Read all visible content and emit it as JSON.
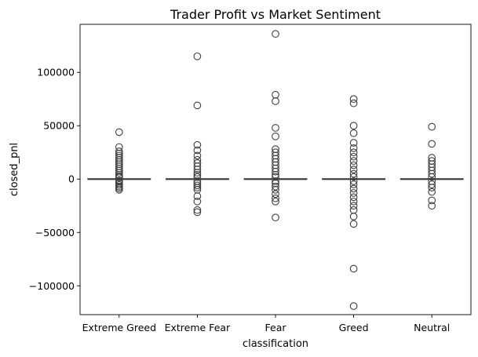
{
  "chart_data": {
    "type": "box",
    "title": "Trader Profit vs Market Sentiment",
    "xlabel": "classification",
    "ylabel": "closed_pnl",
    "categories": [
      "Extreme Greed",
      "Extreme Fear",
      "Fear",
      "Greed",
      "Neutral"
    ],
    "ylim": [
      -127000,
      145000
    ],
    "yticks": [
      -100000,
      -50000,
      0,
      50000,
      100000
    ],
    "ytick_labels": [
      "−100000",
      "−50000",
      "0",
      "50000",
      "100000"
    ],
    "grid": false,
    "box_color": "#3b75af",
    "outlier_edge_color": "#3d3d3d",
    "boxes": [
      {
        "category": "Extreme Greed",
        "q1": 0,
        "median": 0,
        "q3": 0,
        "whisker_low": 0,
        "whisker_high": 0,
        "outliers": [
          44000,
          30000,
          26000,
          24000,
          22000,
          20000,
          18000,
          16000,
          14000,
          12000,
          10000,
          8000,
          6000,
          4000,
          2500,
          1500,
          -1500,
          -2500,
          -4000,
          -5500,
          -7000,
          -8500,
          -10000
        ]
      },
      {
        "category": "Extreme Fear",
        "q1": 0,
        "median": 0,
        "q3": 0,
        "whisker_low": 0,
        "whisker_high": 0,
        "outliers": [
          115000,
          69000,
          32000,
          27000,
          22000,
          18000,
          15000,
          12000,
          9000,
          6000,
          4000,
          2000,
          -2000,
          -4000,
          -6000,
          -8000,
          -10000,
          -16000,
          -21000,
          -29000,
          -31000
        ]
      },
      {
        "category": "Fear",
        "q1": 0,
        "median": 0,
        "q3": 0,
        "whisker_low": 0,
        "whisker_high": 0,
        "outliers": [
          136000,
          79000,
          73000,
          48000,
          40000,
          28000,
          25000,
          22000,
          19000,
          16000,
          13000,
          10000,
          7000,
          4000,
          2000,
          -2000,
          -4000,
          -7000,
          -10000,
          -14000,
          -18000,
          -21000,
          -36000
        ]
      },
      {
        "category": "Greed",
        "q1": 0,
        "median": 0,
        "q3": 0,
        "whisker_low": 0,
        "whisker_high": 0,
        "outliers": [
          75000,
          71000,
          50000,
          43000,
          34000,
          29000,
          25000,
          21000,
          17000,
          13000,
          9000,
          5000,
          2000,
          -2000,
          -5000,
          -9000,
          -13000,
          -17000,
          -21000,
          -25000,
          -29000,
          -35000,
          -42000,
          -84000,
          -119000
        ]
      },
      {
        "category": "Neutral",
        "q1": 0,
        "median": 0,
        "q3": 0,
        "whisker_low": 0,
        "whisker_high": 0,
        "outliers": [
          49000,
          33000,
          20000,
          17000,
          14000,
          11000,
          8000,
          5000,
          2000,
          -2000,
          -5000,
          -8000,
          -12000,
          -20000,
          -25000
        ]
      }
    ]
  }
}
